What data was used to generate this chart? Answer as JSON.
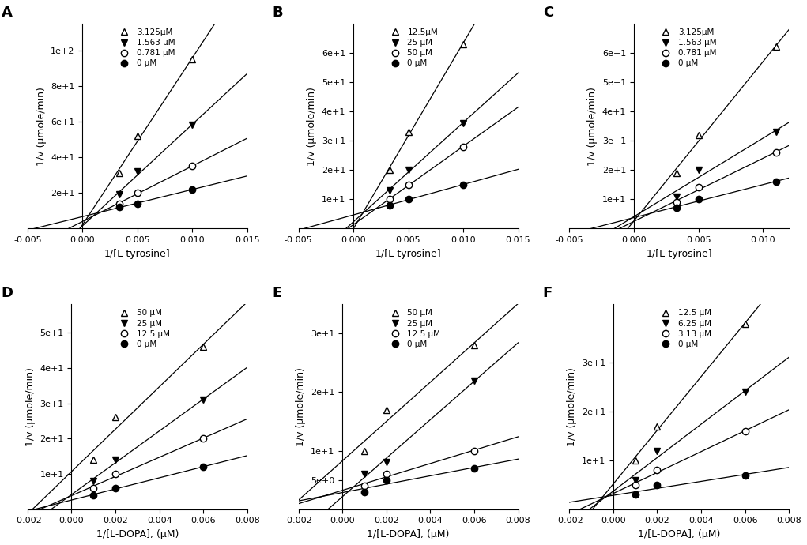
{
  "panels": [
    {
      "label": "A",
      "xlabel": "1/[L-tyrosine]",
      "ylabel": "1/v (μmole/min)",
      "xlim": [
        -0.005,
        0.015
      ],
      "ylim": [
        0,
        115
      ],
      "ytick_vals": [
        20,
        40,
        60,
        80,
        100
      ],
      "ytick_labels": [
        "2e+1",
        "4e+1",
        "6e+1",
        "8e+1",
        "1e+2"
      ],
      "xtick_vals": [
        -0.005,
        0.0,
        0.005,
        0.01,
        0.015
      ],
      "series": [
        {
          "label": "3.125μM",
          "marker": "^",
          "filled": false,
          "x": [
            0.00333,
            0.005,
            0.01
          ],
          "y": [
            31,
            52,
            95
          ]
        },
        {
          "label": "1.563 μM",
          "marker": "v",
          "filled": true,
          "x": [
            0.00333,
            0.005,
            0.01
          ],
          "y": [
            19,
            32,
            58
          ]
        },
        {
          "label": "0.781 μM",
          "marker": "o",
          "filled": false,
          "x": [
            0.00333,
            0.005,
            0.01
          ],
          "y": [
            14,
            20,
            35
          ]
        },
        {
          "label": "0 μM",
          "marker": "o",
          "filled": true,
          "x": [
            0.00333,
            0.005,
            0.01
          ],
          "y": [
            12,
            14,
            22
          ]
        }
      ]
    },
    {
      "label": "B",
      "xlabel": "1/[L-tyrosine]",
      "ylabel": "1/v (μmole/min)",
      "xlim": [
        -0.005,
        0.015
      ],
      "ylim": [
        0,
        70
      ],
      "ytick_vals": [
        10,
        20,
        30,
        40,
        50,
        60
      ],
      "ytick_labels": [
        "1e+1",
        "2e+1",
        "3e+1",
        "4e+1",
        "5e+1",
        "6e+1"
      ],
      "xtick_vals": [
        -0.005,
        0.0,
        0.005,
        0.01,
        0.015
      ],
      "series": [
        {
          "label": "12.5μM",
          "marker": "^",
          "filled": false,
          "x": [
            0.00333,
            0.005,
            0.01
          ],
          "y": [
            20,
            33,
            63
          ]
        },
        {
          "label": "25 μM",
          "marker": "v",
          "filled": true,
          "x": [
            0.00333,
            0.005,
            0.01
          ],
          "y": [
            13,
            20,
            36
          ]
        },
        {
          "label": "50 μM",
          "marker": "o",
          "filled": false,
          "x": [
            0.00333,
            0.005,
            0.01
          ],
          "y": [
            10,
            15,
            28
          ]
        },
        {
          "label": "0 μM",
          "marker": "o",
          "filled": true,
          "x": [
            0.00333,
            0.005,
            0.01
          ],
          "y": [
            8,
            10,
            15
          ]
        }
      ]
    },
    {
      "label": "C",
      "xlabel": "1/[L-tyrosine]",
      "ylabel": "1/v (μmole/min)",
      "xlim": [
        -0.005,
        0.012
      ],
      "ylim": [
        0,
        70
      ],
      "ytick_vals": [
        10,
        20,
        30,
        40,
        50,
        60
      ],
      "ytick_labels": [
        "1e+1",
        "2e+1",
        "3e+1",
        "4e+1",
        "5e+1",
        "6e+1"
      ],
      "xtick_vals": [
        -0.005,
        0.0,
        0.005,
        0.01
      ],
      "series": [
        {
          "label": "3.125μM",
          "marker": "^",
          "filled": false,
          "x": [
            0.00333,
            0.005,
            0.011
          ],
          "y": [
            19,
            32,
            62
          ]
        },
        {
          "label": "1.563 μM",
          "marker": "v",
          "filled": true,
          "x": [
            0.00333,
            0.005,
            0.011
          ],
          "y": [
            11,
            20,
            33
          ]
        },
        {
          "label": "0.781 μM",
          "marker": "o",
          "filled": false,
          "x": [
            0.00333,
            0.005,
            0.011
          ],
          "y": [
            9,
            14,
            26
          ]
        },
        {
          "label": "0 μM",
          "marker": "o",
          "filled": true,
          "x": [
            0.00333,
            0.005,
            0.011
          ],
          "y": [
            7,
            10,
            16
          ]
        }
      ]
    },
    {
      "label": "D",
      "xlabel": "1/[L-DOPA], (μM)",
      "ylabel": "1/v (μmole/min)",
      "xlim": [
        -0.002,
        0.008
      ],
      "ylim": [
        0,
        58
      ],
      "ytick_vals": [
        10,
        20,
        30,
        40,
        50
      ],
      "ytick_labels": [
        "1e+1",
        "2e+1",
        "3e+1",
        "4e+1",
        "5e+1"
      ],
      "xtick_vals": [
        -0.002,
        0.0,
        0.002,
        0.004,
        0.006,
        0.008
      ],
      "series": [
        {
          "label": "50 μM",
          "marker": "^",
          "filled": false,
          "x": [
            0.001,
            0.002,
            0.006
          ],
          "y": [
            14,
            26,
            46
          ]
        },
        {
          "label": "25 μM",
          "marker": "v",
          "filled": true,
          "x": [
            0.001,
            0.002,
            0.006
          ],
          "y": [
            8,
            14,
            31
          ]
        },
        {
          "label": "12.5 μM",
          "marker": "o",
          "filled": false,
          "x": [
            0.001,
            0.002,
            0.006
          ],
          "y": [
            6,
            10,
            20
          ]
        },
        {
          "label": "0 μM",
          "marker": "o",
          "filled": true,
          "x": [
            0.001,
            0.002,
            0.006
          ],
          "y": [
            4,
            6,
            12
          ]
        }
      ]
    },
    {
      "label": "E",
      "xlabel": "1/[L-DOPA], (μM)",
      "ylabel": "1/v (μmole/min)",
      "xlim": [
        -0.002,
        0.008
      ],
      "ylim": [
        0,
        35
      ],
      "ytick_vals": [
        5,
        10,
        20,
        30
      ],
      "ytick_labels": [
        "5e+0",
        "1e+1",
        "2e+1",
        "3e+1"
      ],
      "xtick_vals": [
        -0.002,
        0.0,
        0.002,
        0.004,
        0.006,
        0.008
      ],
      "series": [
        {
          "label": "50 μM",
          "marker": "^",
          "filled": false,
          "x": [
            0.001,
            0.002,
            0.006
          ],
          "y": [
            10,
            17,
            28
          ]
        },
        {
          "label": "25 μM",
          "marker": "v",
          "filled": true,
          "x": [
            0.001,
            0.002,
            0.006
          ],
          "y": [
            6,
            8,
            22
          ]
        },
        {
          "label": "12.5 μM",
          "marker": "o",
          "filled": false,
          "x": [
            0.001,
            0.002,
            0.006
          ],
          "y": [
            4,
            6,
            10
          ]
        },
        {
          "label": "0 μM",
          "marker": "o",
          "filled": true,
          "x": [
            0.001,
            0.002,
            0.006
          ],
          "y": [
            3,
            5,
            7
          ]
        }
      ]
    },
    {
      "label": "F",
      "xlabel": "1/[L-DOPA], (μM)",
      "ylabel": "1/v (μmole/min)",
      "xlim": [
        -0.002,
        0.008
      ],
      "ylim": [
        0,
        42
      ],
      "ytick_vals": [
        10,
        20,
        30
      ],
      "ytick_labels": [
        "1e+1",
        "2e+1",
        "3e+1"
      ],
      "xtick_vals": [
        -0.002,
        0.0,
        0.002,
        0.004,
        0.006,
        0.008
      ],
      "series": [
        {
          "label": "12.5 μM",
          "marker": "^",
          "filled": false,
          "x": [
            0.001,
            0.002,
            0.006
          ],
          "y": [
            10,
            17,
            38
          ]
        },
        {
          "label": "6.25 μM",
          "marker": "v",
          "filled": true,
          "x": [
            0.001,
            0.002,
            0.006
          ],
          "y": [
            6,
            12,
            24
          ]
        },
        {
          "label": "3.13 μM",
          "marker": "o",
          "filled": false,
          "x": [
            0.001,
            0.002,
            0.006
          ],
          "y": [
            5,
            8,
            16
          ]
        },
        {
          "label": "0 μM",
          "marker": "o",
          "filled": true,
          "x": [
            0.001,
            0.002,
            0.006
          ],
          "y": [
            3,
            5,
            7
          ]
        }
      ]
    }
  ]
}
